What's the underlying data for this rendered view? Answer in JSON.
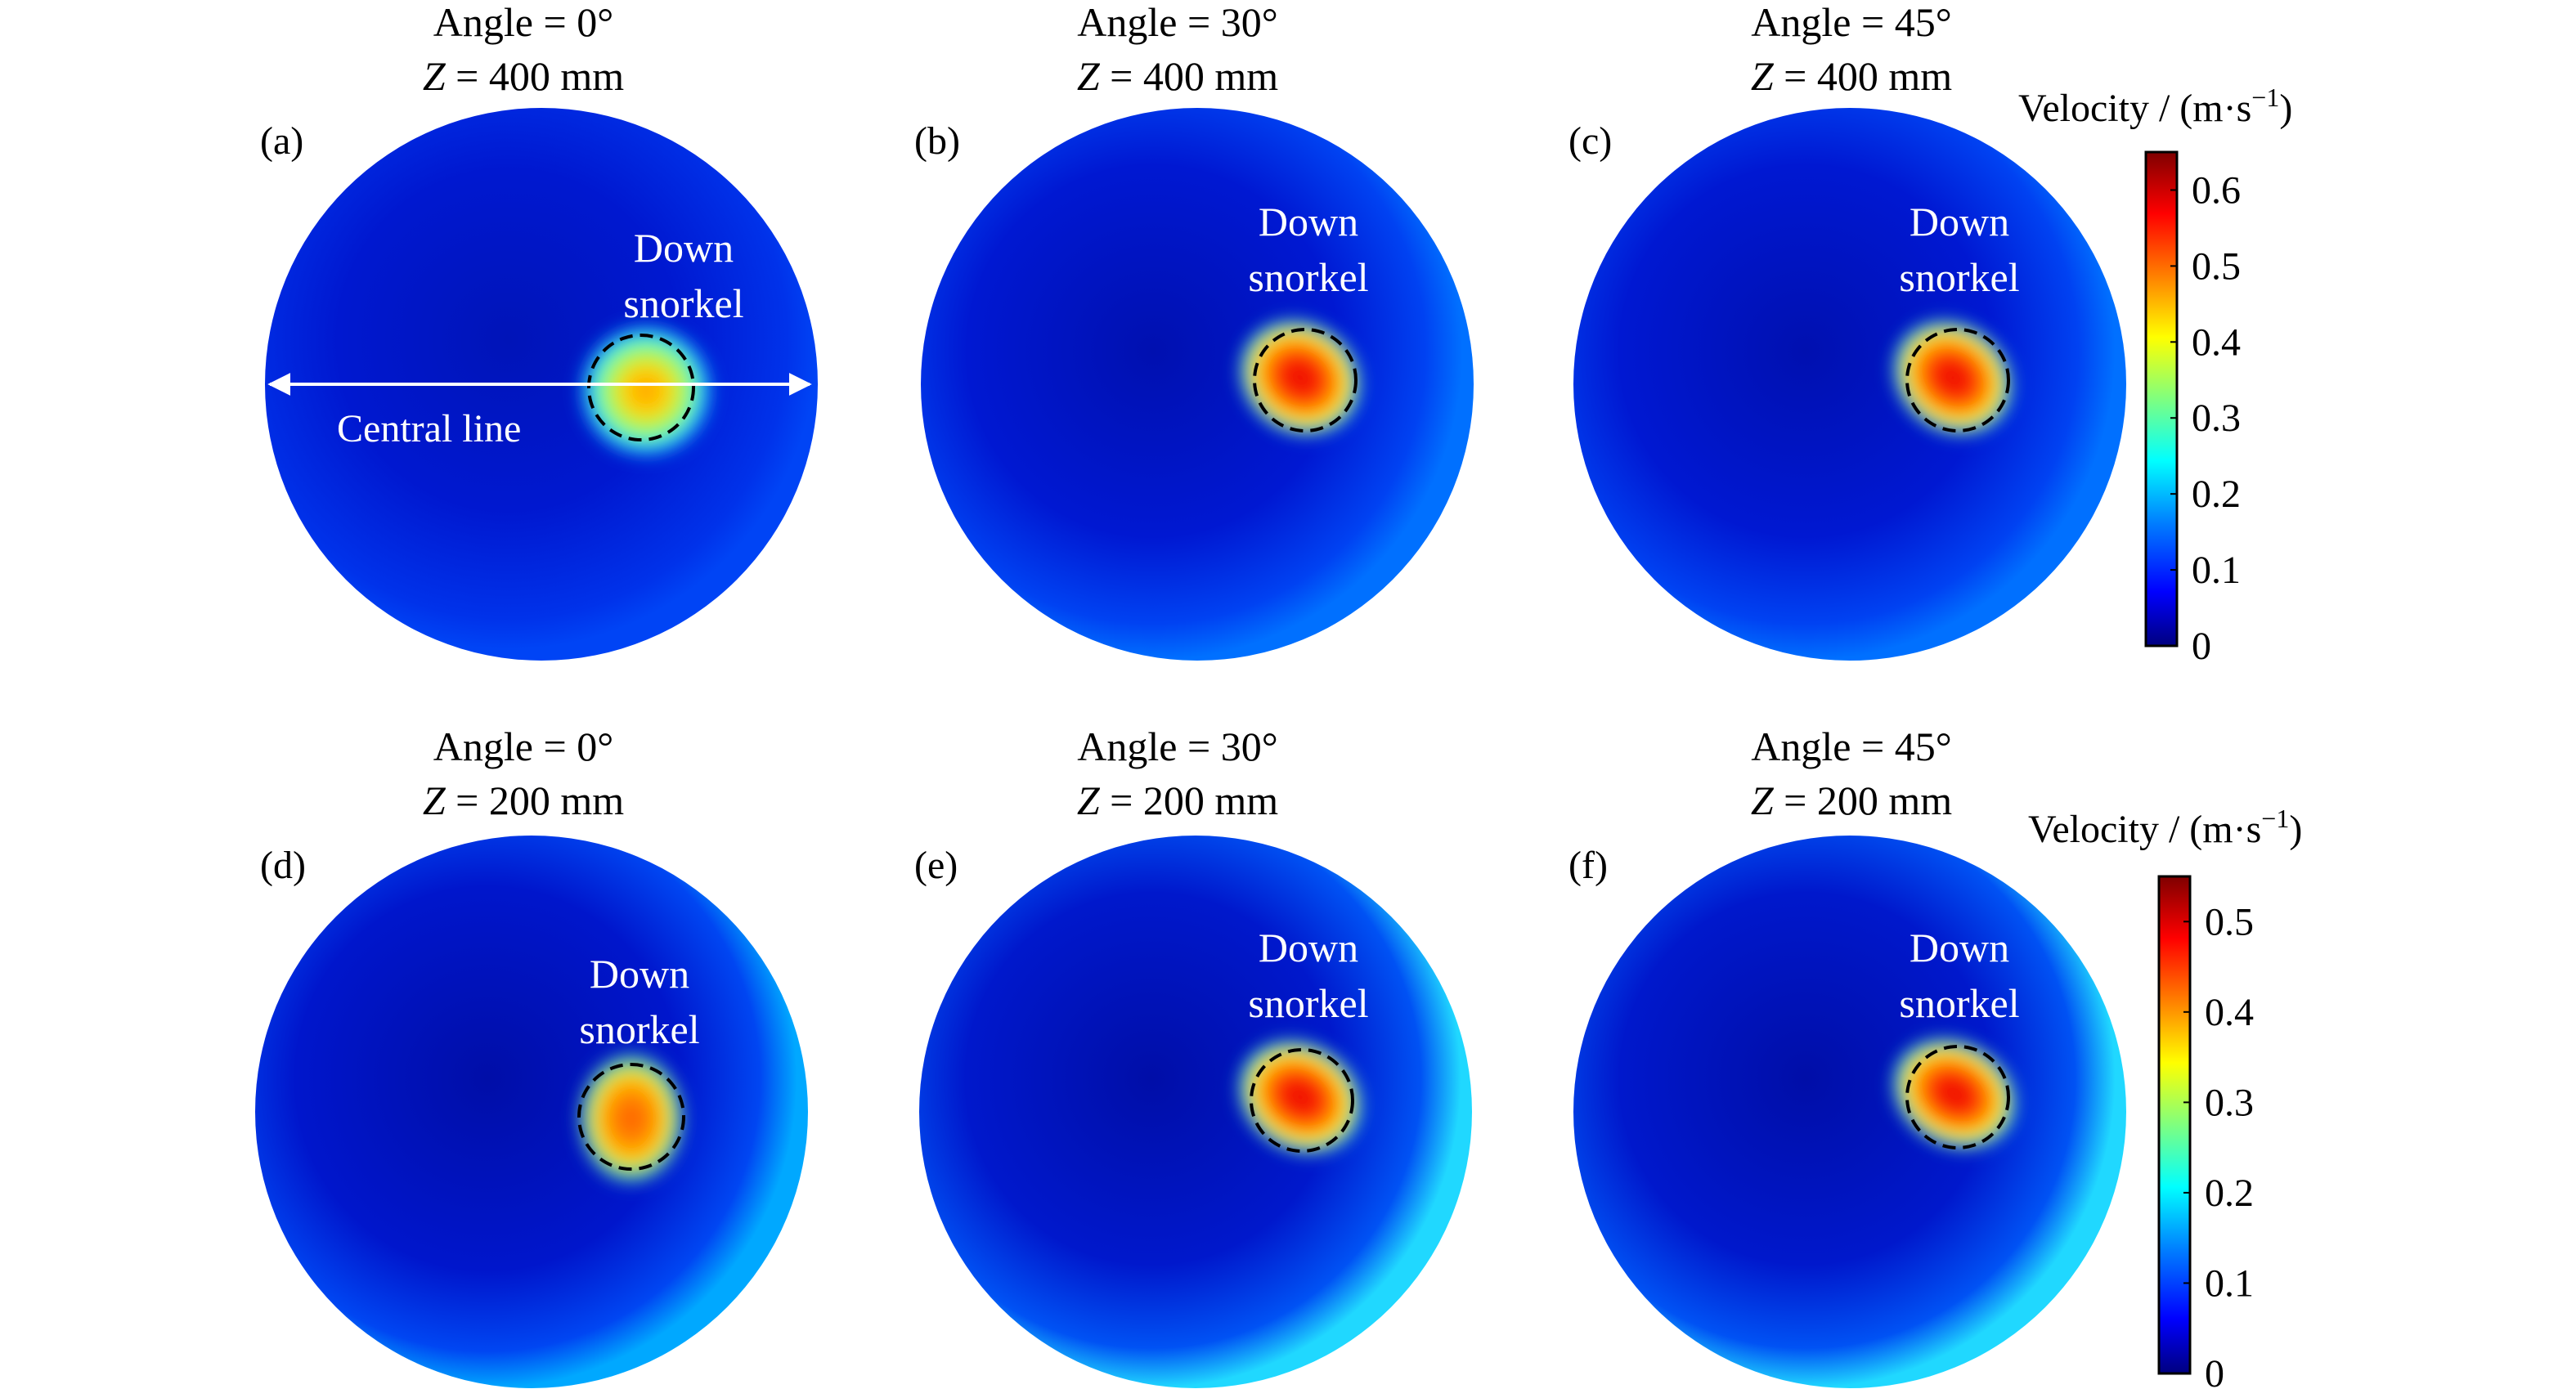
{
  "panels": [
    {
      "letter": "(a)",
      "angle_line": "Angle = 0°",
      "z_line": "= 400 mm",
      "label_line1": "Down",
      "label_line2": "snorkel",
      "central_line": "Central line"
    },
    {
      "letter": "(b)",
      "angle_line": "Angle = 30°",
      "z_line": "= 400 mm",
      "label_line1": "Down",
      "label_line2": "snorkel"
    },
    {
      "letter": "(c)",
      "angle_line": "Angle = 45°",
      "z_line": "= 400 mm",
      "label_line1": "Down",
      "label_line2": "snorkel"
    },
    {
      "letter": "(d)",
      "angle_line": "Angle = 0°",
      "z_line": "= 200 mm",
      "label_line1": "Down",
      "label_line2": "snorkel"
    },
    {
      "letter": "(e)",
      "angle_line": "Angle = 30°",
      "z_line": "= 200 mm",
      "label_line1": "Down",
      "label_line2": "snorkel"
    },
    {
      "letter": "(f)",
      "angle_line": "Angle = 45°",
      "z_line": "= 200 mm",
      "label_line1": "Down",
      "label_line2": "snorkel"
    }
  ],
  "z_symbol": "Z",
  "colorbars": [
    {
      "title_main": "Velocity / (m·s",
      "title_sup": "−1",
      "title_close": ")",
      "ticks": [
        "0",
        "0.1",
        "0.2",
        "0.3",
        "0.4",
        "0.5",
        "0.6"
      ],
      "min": 0,
      "max": 0.65
    },
    {
      "title_main": "Velocity / (m·s",
      "title_sup": "−1",
      "title_close": ")",
      "ticks": [
        "0",
        "0.1",
        "0.2",
        "0.3",
        "0.4",
        "0.5"
      ],
      "min": 0,
      "max": 0.55
    }
  ],
  "colormap": [
    "#00007f",
    "#0000ff",
    "#007fff",
    "#00ffff",
    "#7fff7f",
    "#ffff00",
    "#ff7f00",
    "#ff0000",
    "#7f0000"
  ]
}
